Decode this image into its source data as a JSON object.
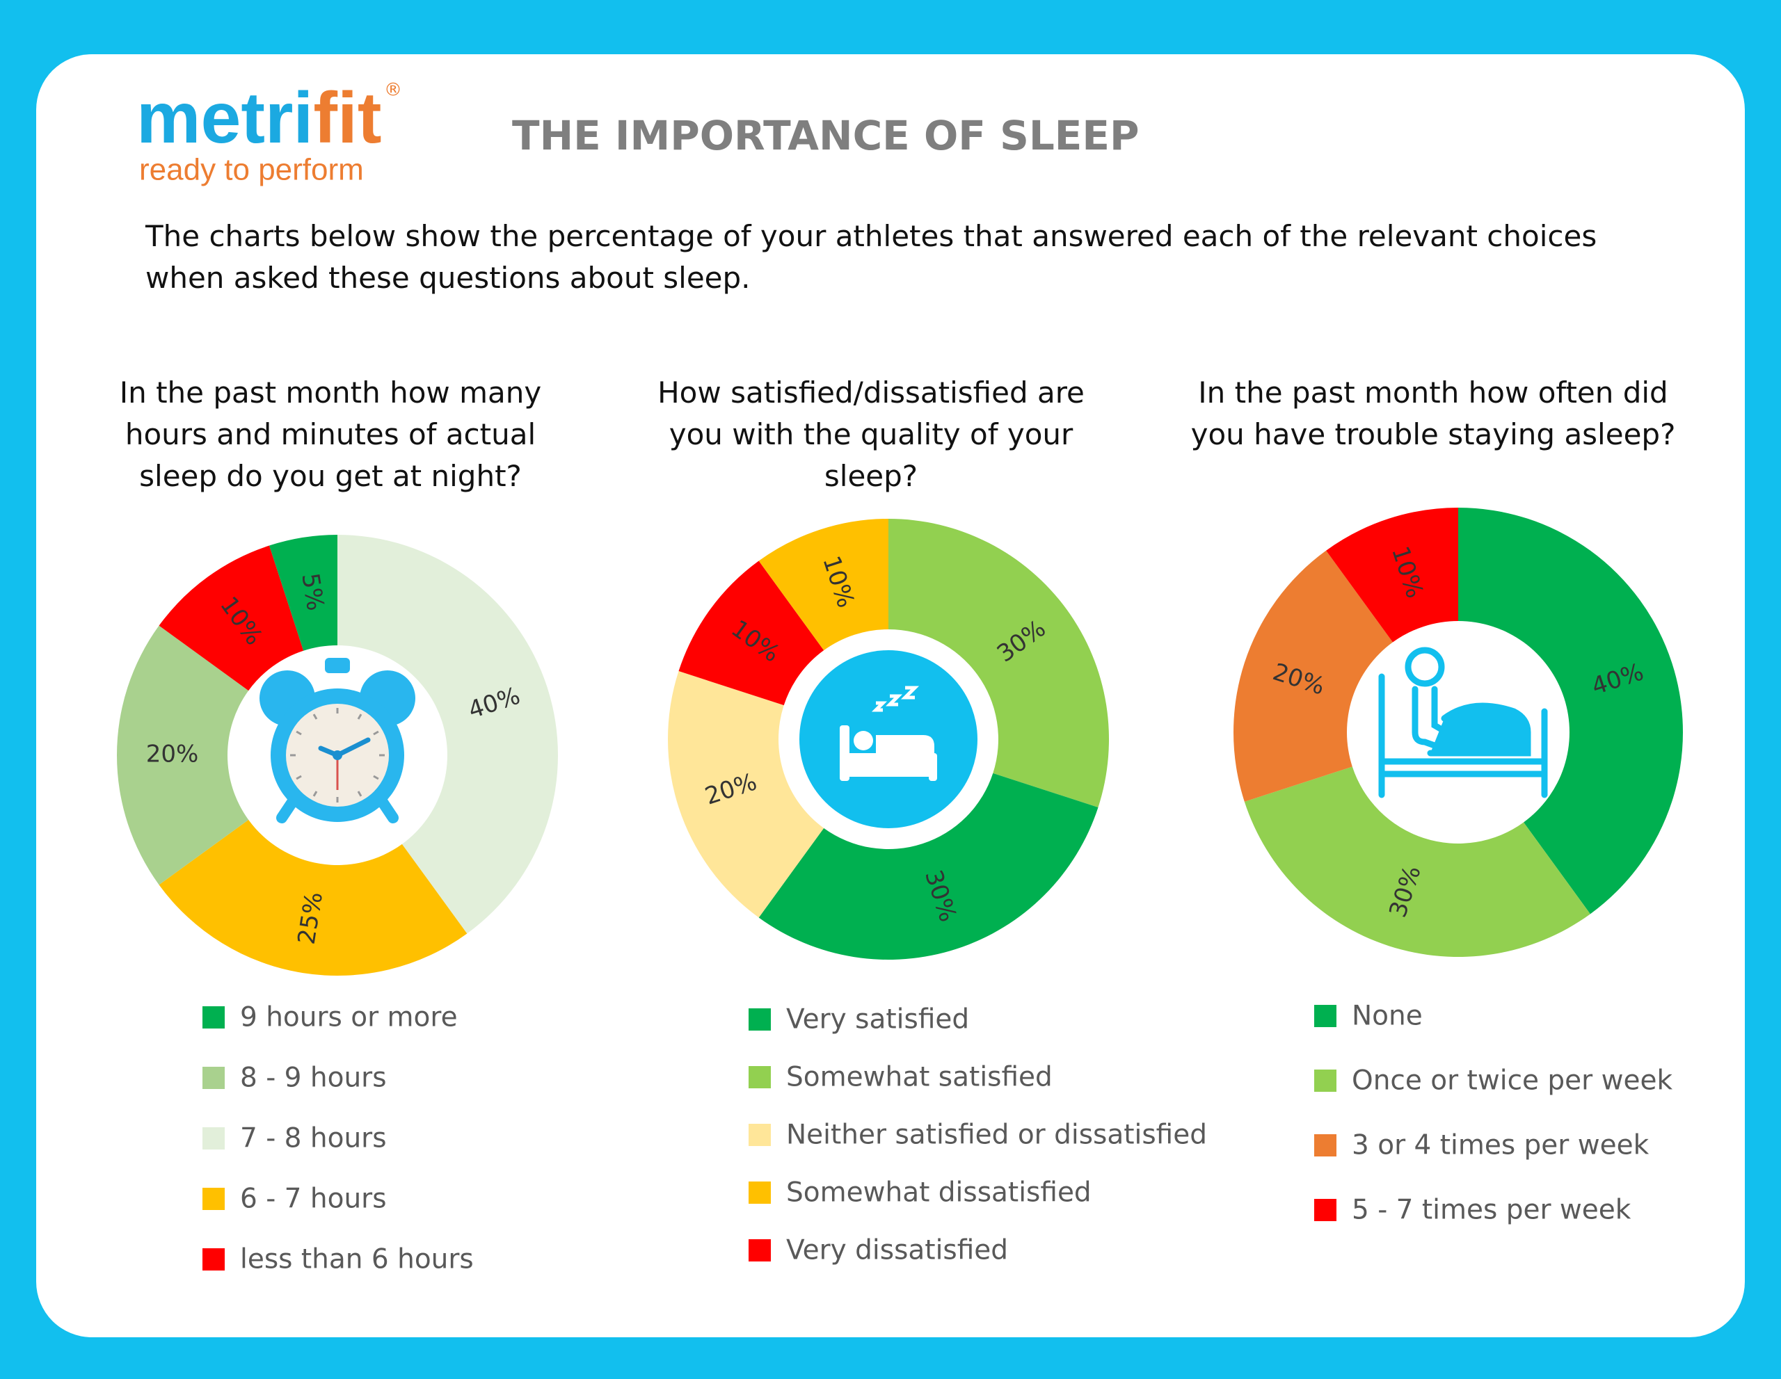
{
  "header": {
    "brand_first": "metri",
    "brand_second": "fit",
    "registered": "®",
    "tagline": "ready to perform",
    "title": "THE IMPORTANCE OF SLEEP",
    "description": "The charts below show the percentage of your athletes that answered each of the relevant choices when asked these questions about sleep."
  },
  "chart_data": [
    {
      "type": "donut",
      "title": "In the past month how many hours and minutes of actual sleep do you get at night?",
      "categories": [
        "7 - 8 hours",
        "6 - 7 hours",
        "8 - 9 hours",
        "less than 6 hours",
        "9 hours or more"
      ],
      "values": [
        40,
        25,
        20,
        10,
        5
      ],
      "value_labels": [
        "40%",
        "25%",
        "20%",
        "10%",
        "5%"
      ],
      "colors": [
        "#e2efda",
        "#ffc000",
        "#a9d18e",
        "#ff0000",
        "#00b050"
      ]
    },
    {
      "type": "donut",
      "title": "How satisfied/dissatisfied are you with the quality of your sleep?",
      "categories": [
        "Somewhat satisfied",
        "Very satisfied",
        "Neither satisfied or dissatisfied",
        "Very dissatisfied",
        "Somewhat dissatisfied"
      ],
      "values": [
        30,
        30,
        20,
        10,
        10
      ],
      "value_labels": [
        "30%",
        "30%",
        "20%",
        "10%",
        "10%"
      ],
      "colors": [
        "#92d050",
        "#00b050",
        "#ffe699",
        "#ff0000",
        "#ffc000"
      ]
    },
    {
      "type": "donut",
      "title": "In the past month how often did you have trouble staying asleep?",
      "categories": [
        "None",
        "Once or twice per week",
        "3 or 4 times per week",
        "5 - 7 times per week"
      ],
      "values": [
        40,
        30,
        20,
        10
      ],
      "value_labels": [
        "40%",
        "30%",
        "20%",
        "10%"
      ],
      "colors": [
        "#00b050",
        "#92d050",
        "#ed7d31",
        "#ff0000"
      ]
    }
  ]
}
